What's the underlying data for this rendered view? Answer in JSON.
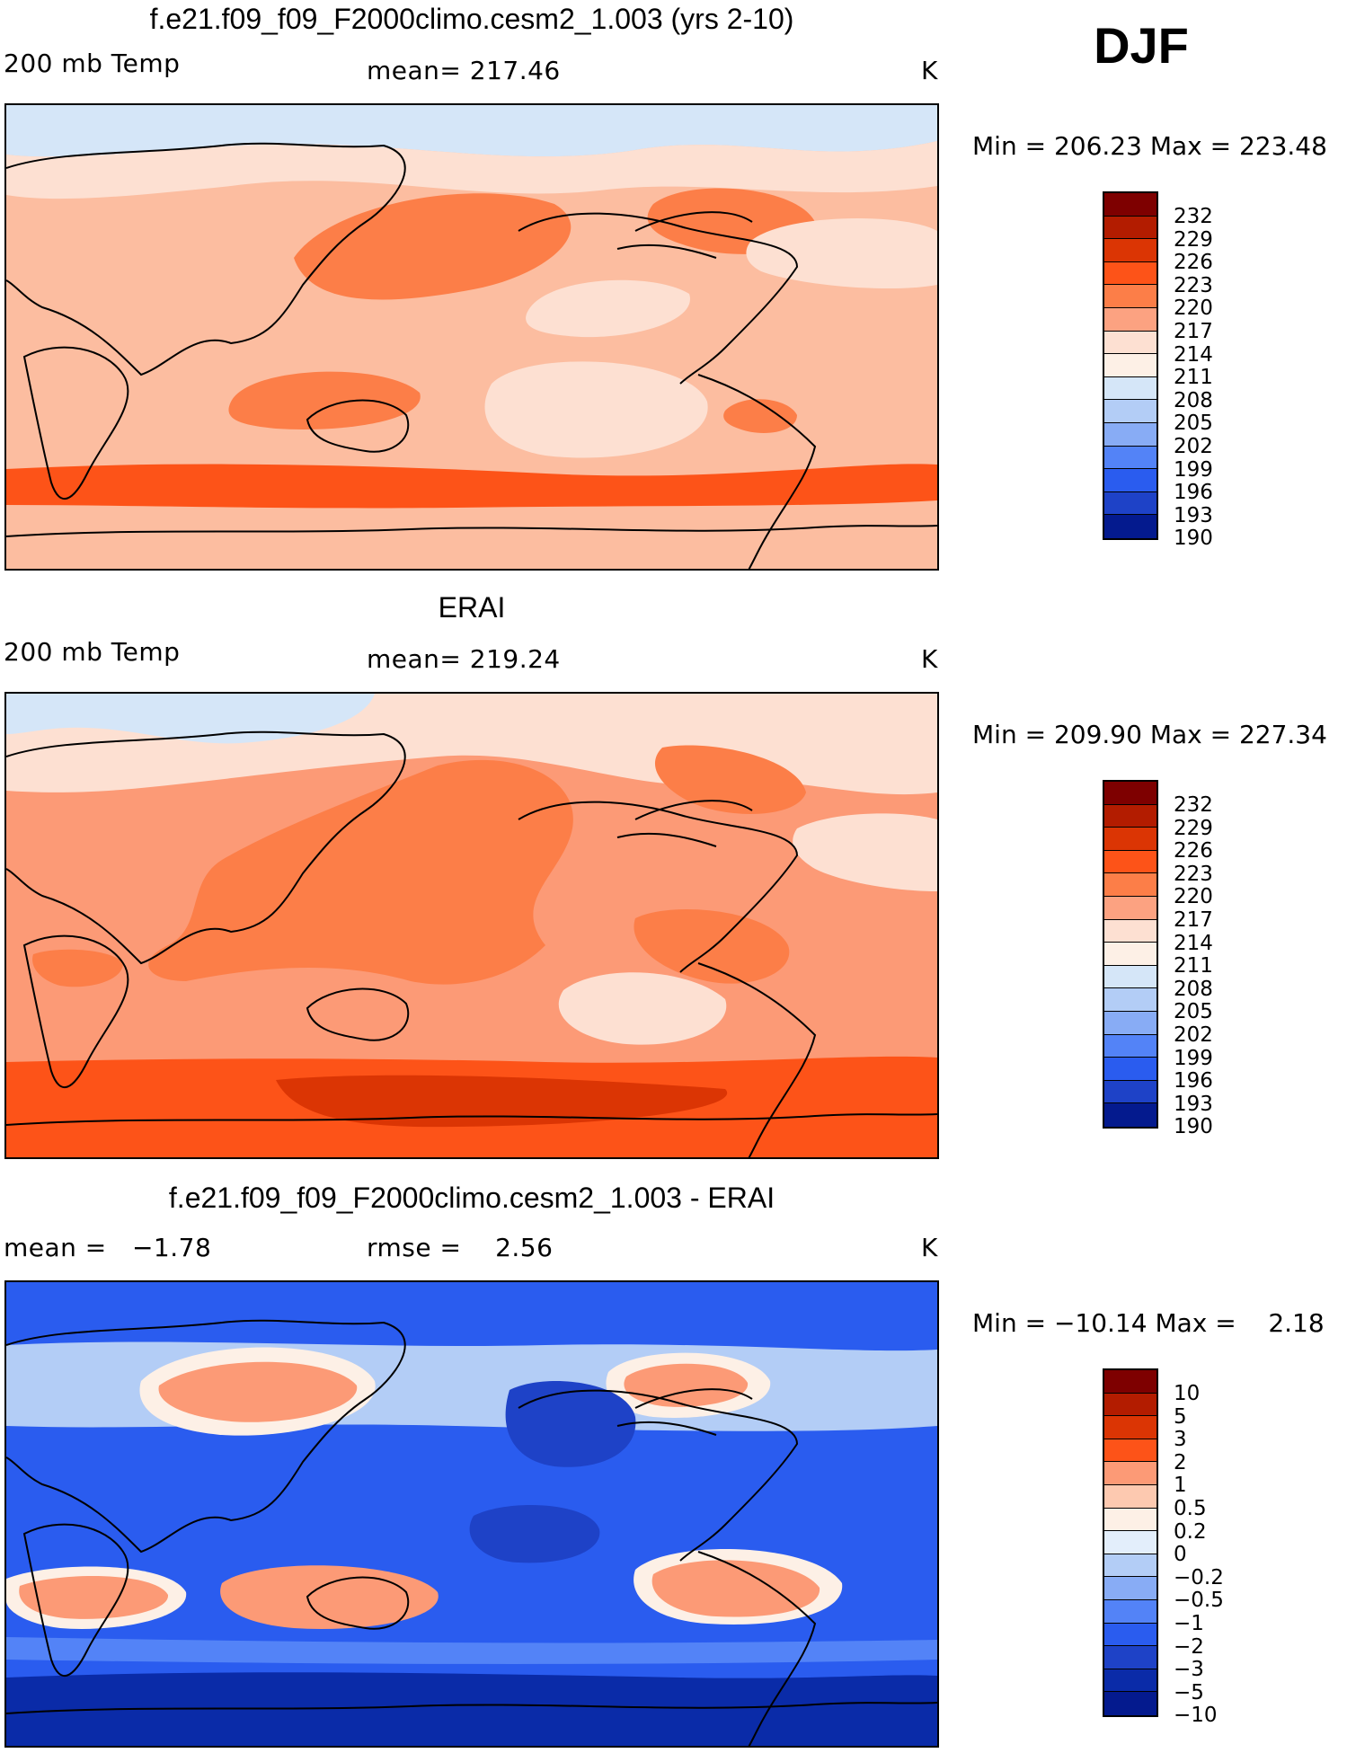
{
  "season": "DJF",
  "panels": [
    {
      "title": "f.e21.f09_f09_F2000climo.cesm2_1.003 (yrs 2-10)",
      "left_label": "200 mb Temp",
      "center_label": "mean= 217.46",
      "units": "K",
      "minmax": "Min = 206.23 Max = 223.48",
      "bg": "#fcbda0",
      "colorbar": {
        "levels": [
          "232",
          "229",
          "226",
          "223",
          "220",
          "217",
          "214",
          "211",
          "208",
          "205",
          "202",
          "199",
          "196",
          "193",
          "190"
        ],
        "colors": [
          "#7e0000",
          "#b31c00",
          "#db3504",
          "#fd5318",
          "#fc7e48",
          "#fca281",
          "#fde0d2",
          "#fdf0e6",
          "#d5e6f8",
          "#b3cdf6",
          "#88acf5",
          "#5383f7",
          "#2a5cef",
          "#1e42c7",
          "#041a8e"
        ]
      },
      "regions": [
        {
          "color": "#d5e6f8"
        },
        {
          "color": "#fde0d2"
        },
        {
          "color": "#fc7e48"
        },
        {
          "color": "#fc7e48"
        },
        {
          "color": "#fc7e48"
        },
        {
          "color": "#fde0d2"
        },
        {
          "color": "#fde0d2"
        },
        {
          "color": "#fde0d2"
        },
        {
          "color": "#fc7e48"
        },
        {
          "color": "#fd5318"
        }
      ]
    },
    {
      "title": "ERAI",
      "left_label": "200 mb Temp",
      "center_label": "mean= 219.24",
      "units": "K",
      "minmax": "Min = 209.90 Max = 227.34",
      "bg": "#fc9a76",
      "colorbar": {
        "levels": [
          "232",
          "229",
          "226",
          "223",
          "220",
          "217",
          "214",
          "211",
          "208",
          "205",
          "202",
          "199",
          "196",
          "193",
          "190"
        ],
        "colors": [
          "#7e0000",
          "#b31c00",
          "#db3504",
          "#fd5318",
          "#fc7e48",
          "#fca281",
          "#fde0d2",
          "#fdf0e6",
          "#d5e6f8",
          "#b3cdf6",
          "#88acf5",
          "#5383f7",
          "#2a5cef",
          "#1e42c7",
          "#041a8e"
        ]
      },
      "regions": [
        {
          "color": "#fde0d2"
        },
        {
          "color": "#d5e6f8"
        },
        {
          "color": "#fc7e48"
        },
        {
          "color": "#fc7e48"
        },
        {
          "color": "#fde0d2"
        },
        {
          "color": "#fde0d2"
        },
        {
          "color": "#fd5318"
        },
        {
          "color": "#db3504"
        },
        {
          "color": "#fc7e48"
        },
        {
          "color": "#fc7e48"
        }
      ]
    },
    {
      "title": "f.e21.f09_f09_F2000climo.cesm2_1.003 - ERAI",
      "left_label": "mean =   −1.78",
      "center_label": "rmse =    2.56",
      "units": "K",
      "minmax": "Min = −10.14 Max =    2.18",
      "bg": "#2a5cef",
      "colorbar": {
        "levels": [
          "10",
          "5",
          "3",
          "2",
          "1",
          "0.5",
          "0.2",
          "0",
          "−0.2",
          "−0.5",
          "−1",
          "−2",
          "−3",
          "−5",
          "−10"
        ],
        "colors": [
          "#7e0000",
          "#b31c00",
          "#db3504",
          "#fd5318",
          "#fc9a76",
          "#fdc9b0",
          "#fdf0e6",
          "#e3eefb",
          "#b3cdf6",
          "#88acf5",
          "#5383f7",
          "#2a5cef",
          "#1e42c7",
          "#0a2ba8",
          "#041a8e"
        ]
      },
      "regions": [
        {
          "color": "#b3cdf6"
        },
        {
          "color": "#fdf0e6"
        },
        {
          "color": "#fc9a76"
        },
        {
          "color": "#fdf0e6"
        },
        {
          "color": "#fc9a76"
        },
        {
          "color": "#fdf0e6"
        },
        {
          "color": "#fc9a76"
        },
        {
          "color": "#fc9a76"
        },
        {
          "color": "#fdf0e6"
        },
        {
          "color": "#fc9a76"
        },
        {
          "color": "#1e42c7"
        },
        {
          "color": "#1e42c7"
        },
        {
          "color": "#0a2ba8"
        },
        {
          "color": "#5383f7"
        }
      ]
    }
  ]
}
